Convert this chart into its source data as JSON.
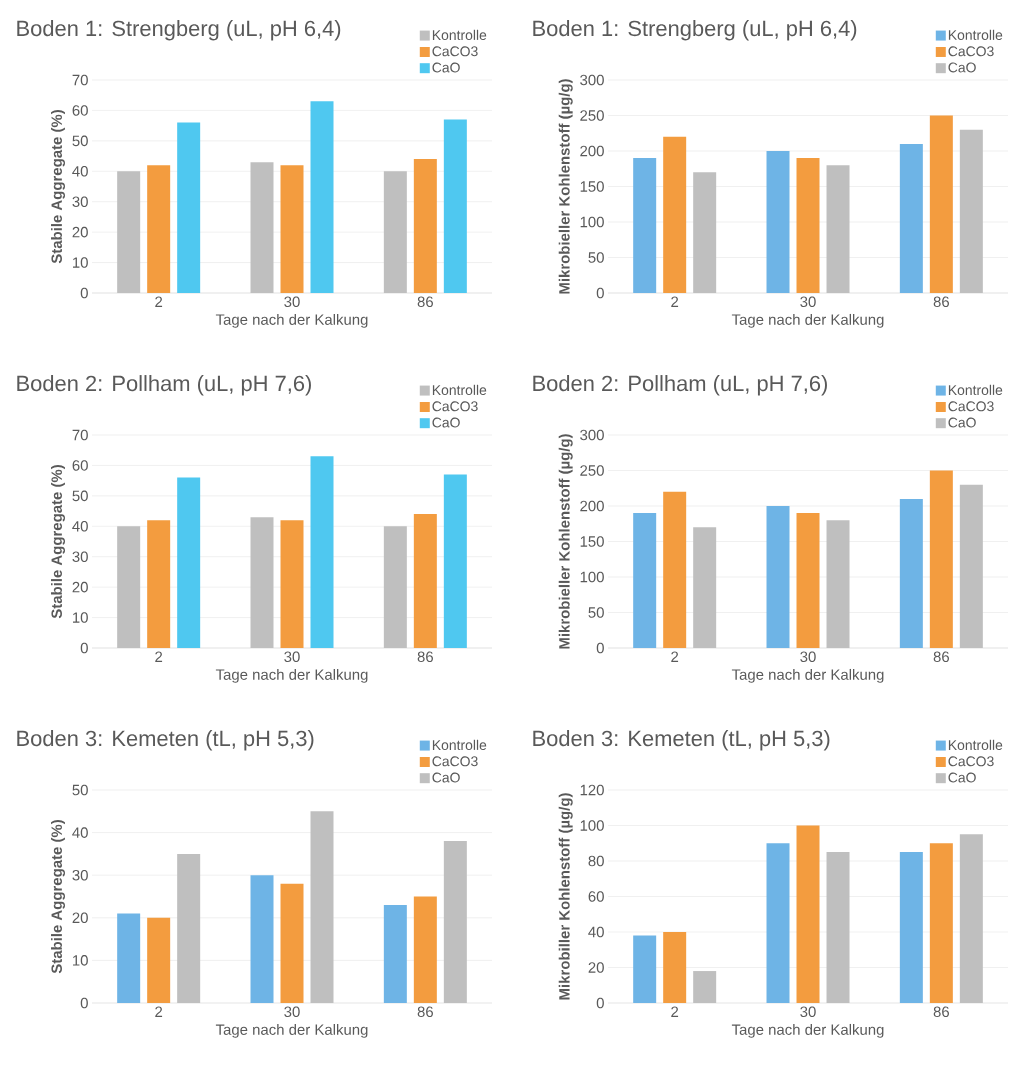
{
  "chart_data": [
    {
      "type": "bar",
      "title": "Boden 1: Strengberg (uL, pH 6,4)",
      "xlabel": "Tage nach der Kalkung",
      "ylabel": "Stabile Aggregate (%)",
      "categories": [
        "2",
        "30",
        "86"
      ],
      "ylim": [
        0,
        70
      ],
      "yticks": [
        0,
        10,
        20,
        30,
        40,
        50,
        60,
        70
      ],
      "grid": "y",
      "legend": "top right",
      "series": [
        {
          "name": "Kontrolle",
          "color": "#bfbfbf",
          "values": [
            40,
            43,
            40
          ]
        },
        {
          "name": "CaCO3",
          "color": "#f39c3f",
          "values": [
            42,
            42,
            44
          ]
        },
        {
          "name": "CaO",
          "color": "#4fc8f0",
          "values": [
            56,
            63,
            57
          ]
        }
      ]
    },
    {
      "type": "bar",
      "title": "Boden 1: Strengberg (uL, pH 6,4)",
      "xlabel": "Tage nach der Kalkung",
      "ylabel": "Mikrobieller Kohlenstoff (µg/g)",
      "categories": [
        "2",
        "30",
        "86"
      ],
      "ylim": [
        0,
        300
      ],
      "yticks": [
        0,
        50,
        100,
        150,
        200,
        250,
        300
      ],
      "grid": "y",
      "legend": "top right",
      "series": [
        {
          "name": "Kontrolle",
          "color": "#6eb4e6",
          "values": [
            190,
            200,
            210
          ]
        },
        {
          "name": "CaCO3",
          "color": "#f39c3f",
          "values": [
            220,
            190,
            250
          ]
        },
        {
          "name": "CaO",
          "color": "#bfbfbf",
          "values": [
            170,
            180,
            230
          ]
        }
      ]
    },
    {
      "type": "bar",
      "title": "Boden 2: Pollham (uL, pH 7,6)",
      "xlabel": "Tage nach der Kalkung",
      "ylabel": "Stabile Aggregate (%)",
      "categories": [
        "2",
        "30",
        "86"
      ],
      "ylim": [
        0,
        70
      ],
      "yticks": [
        0,
        10,
        20,
        30,
        40,
        50,
        60,
        70
      ],
      "grid": "y",
      "legend": "top right",
      "series": [
        {
          "name": "Kontrolle",
          "color": "#bfbfbf",
          "values": [
            40,
            43,
            40
          ]
        },
        {
          "name": "CaCO3",
          "color": "#f39c3f",
          "values": [
            42,
            42,
            44
          ]
        },
        {
          "name": "CaO",
          "color": "#4fc8f0",
          "values": [
            56,
            63,
            57
          ]
        }
      ]
    },
    {
      "type": "bar",
      "title": "Boden 2: Pollham (uL, pH 7,6)",
      "xlabel": "Tage nach der Kalkung",
      "ylabel": "Mikrobieller Kohlenstoff (µg/g)",
      "categories": [
        "2",
        "30",
        "86"
      ],
      "ylim": [
        0,
        300
      ],
      "yticks": [
        0,
        50,
        100,
        150,
        200,
        250,
        300
      ],
      "grid": "y",
      "legend": "top right",
      "series": [
        {
          "name": "Kontrolle",
          "color": "#6eb4e6",
          "values": [
            190,
            200,
            210
          ]
        },
        {
          "name": "CaCO3",
          "color": "#f39c3f",
          "values": [
            220,
            190,
            250
          ]
        },
        {
          "name": "CaO",
          "color": "#bfbfbf",
          "values": [
            170,
            180,
            230
          ]
        }
      ]
    },
    {
      "type": "bar",
      "title": "Boden 3: Kemeten (tL, pH 5,3)",
      "xlabel": "Tage nach der Kalkung",
      "ylabel": "Stabile Aggregate (%)",
      "categories": [
        "2",
        "30",
        "86"
      ],
      "ylim": [
        0,
        50
      ],
      "yticks": [
        0,
        10,
        20,
        30,
        40,
        50
      ],
      "grid": "y",
      "legend": "top right",
      "series": [
        {
          "name": "Kontrolle",
          "color": "#6eb4e6",
          "values": [
            21,
            30,
            23
          ]
        },
        {
          "name": "CaCO3",
          "color": "#f39c3f",
          "values": [
            20,
            28,
            25
          ]
        },
        {
          "name": "CaO",
          "color": "#bfbfbf",
          "values": [
            35,
            45,
            38
          ]
        }
      ]
    },
    {
      "type": "bar",
      "title": "Boden 3: Kemeten (tL, pH 5,3)",
      "xlabel": "Tage nach der Kalkung",
      "ylabel": "Mikrobiller Kohlenstoff (µg/g)",
      "categories": [
        "2",
        "30",
        "86"
      ],
      "ylim": [
        0,
        120
      ],
      "yticks": [
        0,
        20,
        40,
        60,
        80,
        100,
        120
      ],
      "grid": "y",
      "legend": "top right",
      "series": [
        {
          "name": "Kontrolle",
          "color": "#6eb4e6",
          "values": [
            38,
            90,
            85
          ]
        },
        {
          "name": "CaCO3",
          "color": "#f39c3f",
          "values": [
            40,
            100,
            90
          ]
        },
        {
          "name": "CaO",
          "color": "#bfbfbf",
          "values": [
            18,
            85,
            95
          ]
        }
      ]
    }
  ]
}
